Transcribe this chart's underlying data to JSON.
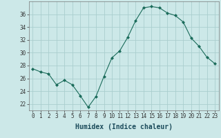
{
  "x": [
    0,
    1,
    2,
    3,
    4,
    5,
    6,
    7,
    8,
    9,
    10,
    11,
    12,
    13,
    14,
    15,
    16,
    17,
    18,
    19,
    20,
    21,
    22,
    23
  ],
  "y": [
    27.5,
    27.0,
    26.7,
    25.0,
    25.7,
    25.0,
    23.3,
    21.5,
    23.2,
    26.3,
    29.2,
    30.3,
    32.4,
    35.0,
    37.0,
    37.2,
    37.0,
    36.2,
    35.8,
    34.8,
    32.3,
    31.0,
    29.3,
    28.3
  ],
  "line_color": "#1a6b5a",
  "marker": "D",
  "marker_size": 2,
  "bg_color": "#cce8e8",
  "grid_color": "#aacece",
  "xlabel": "Humidex (Indice chaleur)",
  "ylim": [
    21,
    38
  ],
  "yticks": [
    22,
    24,
    26,
    28,
    30,
    32,
    34,
    36
  ],
  "xticks": [
    0,
    1,
    2,
    3,
    4,
    5,
    6,
    7,
    8,
    9,
    10,
    11,
    12,
    13,
    14,
    15,
    16,
    17,
    18,
    19,
    20,
    21,
    22,
    23
  ],
  "tick_fontsize": 5.5,
  "xlabel_fontsize": 7
}
